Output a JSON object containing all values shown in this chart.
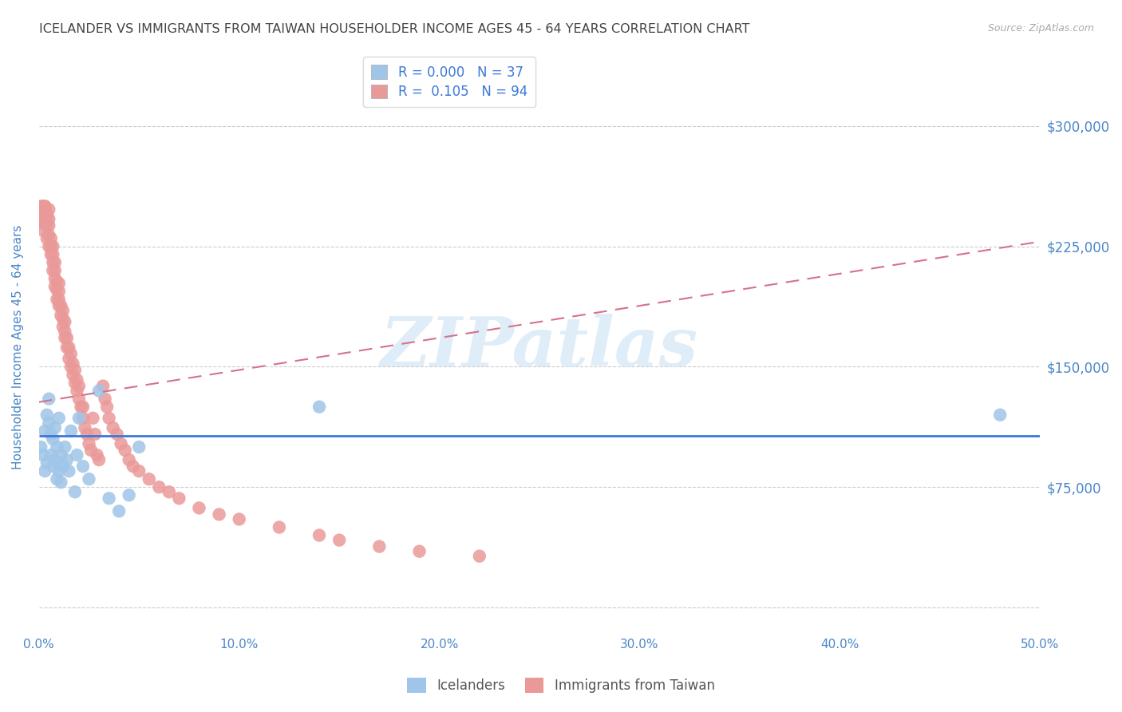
{
  "title": "ICELANDER VS IMMIGRANTS FROM TAIWAN HOUSEHOLDER INCOME AGES 45 - 64 YEARS CORRELATION CHART",
  "source": "Source: ZipAtlas.com",
  "ylabel": "Householder Income Ages 45 - 64 years",
  "xlim": [
    0.0,
    0.5
  ],
  "ylim": [
    -15000,
    340000
  ],
  "ytick_vals": [
    0,
    75000,
    150000,
    225000,
    300000
  ],
  "ytick_labels_right": [
    "",
    "$75,000",
    "$150,000",
    "$225,000",
    "$300,000"
  ],
  "xticks": [
    0.0,
    0.1,
    0.2,
    0.3,
    0.4,
    0.5
  ],
  "xtick_labels": [
    "0.0%",
    "10.0%",
    "20.0%",
    "30.0%",
    "40.0%",
    "50.0%"
  ],
  "blue_scatter_color": "#9fc5e8",
  "pink_scatter_color": "#ea9999",
  "blue_line_color": "#3c78d8",
  "pink_line_color": "#d5728a",
  "axis_color": "#4a86c8",
  "grid_color": "#cccccc",
  "title_color": "#444444",
  "watermark_text": "ZIPatlas",
  "watermark_color": "#daeaf8",
  "legend_R_blue": "0.000",
  "legend_N_blue": "37",
  "legend_R_pink": "0.105",
  "legend_N_pink": "94",
  "blue_line_intercept": 107000,
  "blue_line_slope": 0,
  "pink_line_intercept": 128000,
  "pink_line_slope": 200000,
  "icelanders_x": [
    0.001,
    0.002,
    0.003,
    0.003,
    0.004,
    0.004,
    0.005,
    0.005,
    0.006,
    0.006,
    0.007,
    0.007,
    0.008,
    0.008,
    0.009,
    0.009,
    0.01,
    0.01,
    0.011,
    0.011,
    0.012,
    0.013,
    0.014,
    0.015,
    0.016,
    0.018,
    0.019,
    0.02,
    0.022,
    0.025,
    0.03,
    0.035,
    0.04,
    0.045,
    0.05,
    0.14,
    0.48
  ],
  "icelanders_y": [
    100000,
    95000,
    85000,
    110000,
    120000,
    90000,
    115000,
    130000,
    108000,
    95000,
    105000,
    88000,
    112000,
    92000,
    100000,
    80000,
    118000,
    85000,
    95000,
    78000,
    88000,
    100000,
    92000,
    85000,
    110000,
    72000,
    95000,
    118000,
    88000,
    80000,
    135000,
    68000,
    60000,
    70000,
    100000,
    125000,
    120000
  ],
  "taiwan_x": [
    0.001,
    0.001,
    0.002,
    0.002,
    0.002,
    0.003,
    0.003,
    0.003,
    0.003,
    0.003,
    0.004,
    0.004,
    0.004,
    0.004,
    0.005,
    0.005,
    0.005,
    0.005,
    0.005,
    0.006,
    0.006,
    0.006,
    0.007,
    0.007,
    0.007,
    0.007,
    0.008,
    0.008,
    0.008,
    0.008,
    0.009,
    0.009,
    0.009,
    0.01,
    0.01,
    0.01,
    0.01,
    0.011,
    0.011,
    0.012,
    0.012,
    0.012,
    0.013,
    0.013,
    0.013,
    0.014,
    0.014,
    0.015,
    0.015,
    0.016,
    0.016,
    0.017,
    0.017,
    0.018,
    0.018,
    0.019,
    0.019,
    0.02,
    0.02,
    0.021,
    0.022,
    0.022,
    0.023,
    0.024,
    0.025,
    0.026,
    0.027,
    0.028,
    0.029,
    0.03,
    0.032,
    0.033,
    0.034,
    0.035,
    0.037,
    0.039,
    0.041,
    0.043,
    0.045,
    0.047,
    0.05,
    0.055,
    0.06,
    0.065,
    0.07,
    0.08,
    0.09,
    0.1,
    0.12,
    0.14,
    0.15,
    0.17,
    0.19,
    0.22
  ],
  "taiwan_y": [
    240000,
    250000,
    235000,
    245000,
    250000,
    240000,
    248000,
    250000,
    250000,
    245000,
    230000,
    242000,
    238000,
    245000,
    225000,
    232000,
    238000,
    242000,
    248000,
    220000,
    225000,
    230000,
    210000,
    215000,
    220000,
    225000,
    200000,
    205000,
    210000,
    215000,
    192000,
    198000,
    203000,
    188000,
    192000,
    197000,
    202000,
    182000,
    188000,
    175000,
    180000,
    185000,
    168000,
    172000,
    178000,
    162000,
    168000,
    155000,
    162000,
    150000,
    158000,
    145000,
    152000,
    140000,
    148000,
    135000,
    142000,
    130000,
    138000,
    125000,
    118000,
    125000,
    112000,
    108000,
    102000,
    98000,
    118000,
    108000,
    95000,
    92000,
    138000,
    130000,
    125000,
    118000,
    112000,
    108000,
    102000,
    98000,
    92000,
    88000,
    85000,
    80000,
    75000,
    72000,
    68000,
    62000,
    58000,
    55000,
    50000,
    45000,
    42000,
    38000,
    35000,
    32000
  ]
}
